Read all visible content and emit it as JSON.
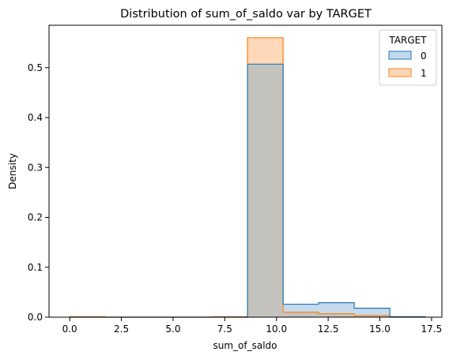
{
  "chart_data": {
    "type": "histogram",
    "title": "Distribution of sum_of_saldo var by TARGET",
    "xlabel": "sum_of_saldo",
    "ylabel": "Density",
    "xlim": [
      -1.0,
      18.0
    ],
    "ylim": [
      0,
      0.585
    ],
    "xticks": [
      "0.0",
      "2.5",
      "5.0",
      "7.5",
      "10.0",
      "12.5",
      "15.0",
      "17.5"
    ],
    "xtick_values": [
      0,
      2.5,
      5,
      7.5,
      10,
      12.5,
      15,
      17.5
    ],
    "yticks": [
      "0.0",
      "0.1",
      "0.2",
      "0.3",
      "0.4",
      "0.5"
    ],
    "ytick_values": [
      0,
      0.1,
      0.2,
      0.3,
      0.4,
      0.5
    ],
    "bin_edges": [
      0,
      1.72,
      3.44,
      5.16,
      6.88,
      8.6,
      10.32,
      12.04,
      13.76,
      15.48,
      17.2
    ],
    "series": [
      {
        "name": "0",
        "values": [
          0,
          0,
          0,
          0,
          0,
          0.507,
          0.026,
          0.029,
          0.018,
          0.001
        ]
      },
      {
        "name": "1",
        "values": [
          0.001,
          0,
          0,
          0,
          0.001,
          0.56,
          0.01,
          0.007,
          0.003,
          0
        ]
      }
    ],
    "legend": {
      "title": "TARGET",
      "position": "top-right"
    },
    "grid": false,
    "colors": {
      "series0_edge": "#1f77b4",
      "series0_fill": "#c6d9ec",
      "series1_edge": "#ff7f0e",
      "series1_fill": "#fdd8b9",
      "overlap_fill": "#c4c2bc"
    }
  }
}
